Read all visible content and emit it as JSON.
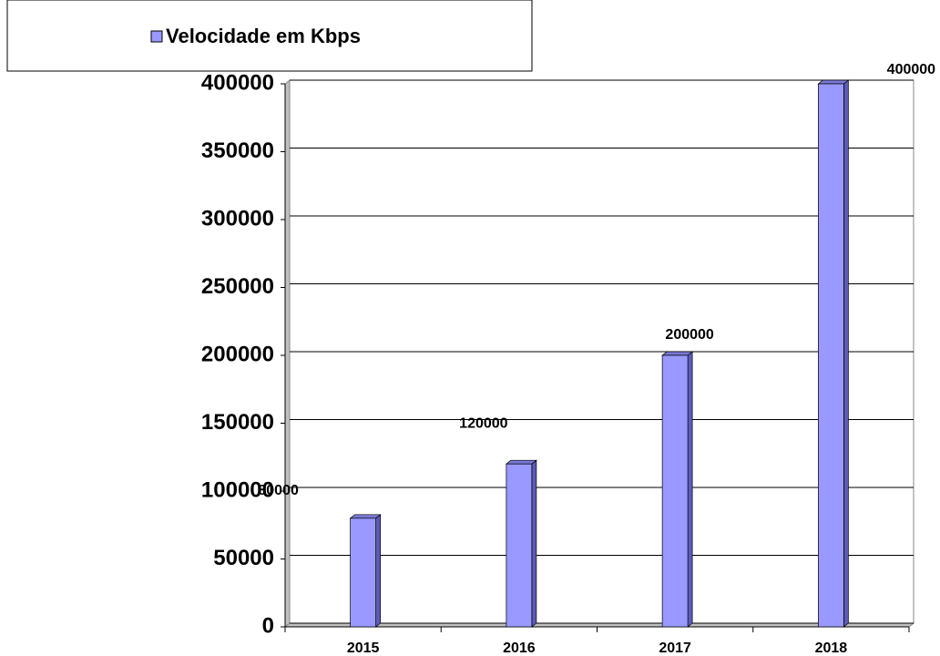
{
  "chart_data": {
    "type": "bar",
    "categories": [
      "2015",
      "2016",
      "2017",
      "2018"
    ],
    "series": [
      {
        "name": "Velocidade em Kbps",
        "color": "#9999ff",
        "values": [
          80000,
          120000,
          200000,
          400000
        ]
      }
    ],
    "ylim": [
      0,
      400000
    ],
    "yticks": [
      0,
      50000,
      100000,
      150000,
      200000,
      250000,
      300000,
      350000,
      400000
    ],
    "grid": true,
    "legend": "top-left"
  }
}
